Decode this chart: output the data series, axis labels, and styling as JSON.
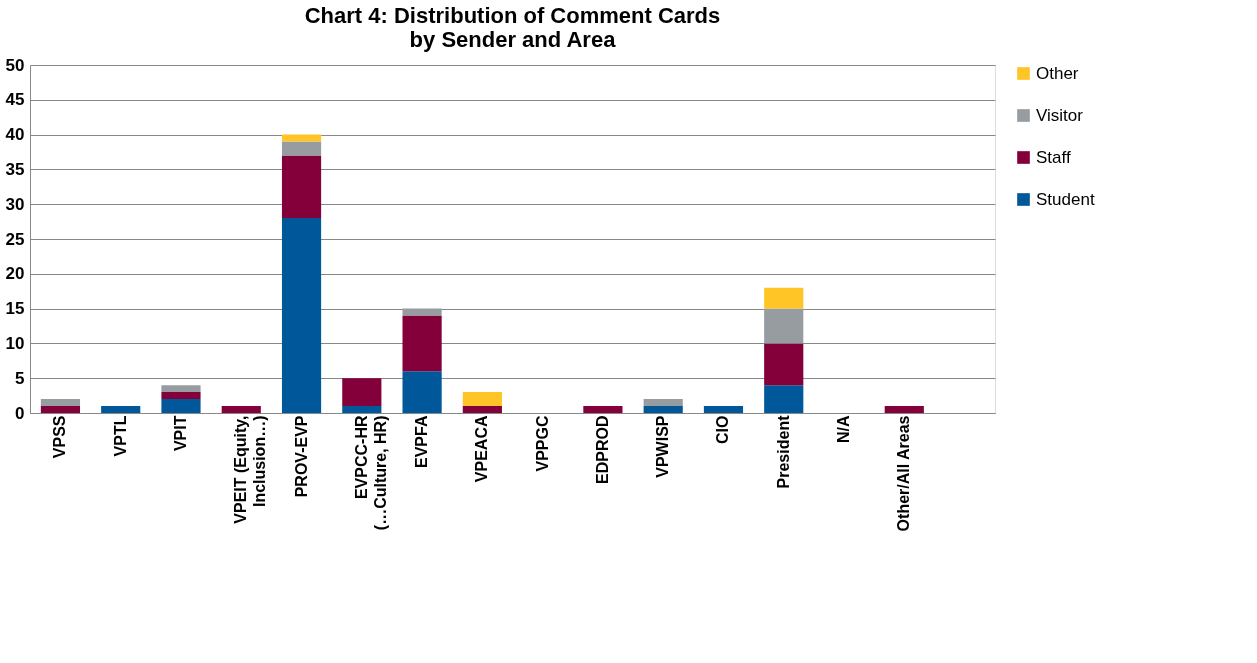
{
  "chart_data": {
    "type": "bar",
    "title": "Chart 4: Distribution of Comment Cards\nby Sender and Area",
    "stacked": true,
    "categories": [
      "VPSS",
      "VPTL",
      "VPIT",
      "VPEIT (Equity,\nInclusion…)",
      "PROV-EVP",
      "EVPCC-HR\n(…Culture, HR)",
      "EVPFA",
      "VPEACA",
      "VPPGC",
      "EDPROD",
      "VPWISP",
      "CIO",
      "President",
      "N/A",
      "Other/All Areas",
      null
    ],
    "series": [
      {
        "name": "Student",
        "color": "#00589a",
        "values": [
          0,
          1,
          2,
          0,
          28,
          1,
          6,
          0,
          0,
          0,
          1,
          1,
          4,
          0,
          0,
          null
        ]
      },
      {
        "name": "Staff",
        "color": "#84003a",
        "values": [
          1,
          0,
          1,
          1,
          9,
          4,
          8,
          1,
          0,
          1,
          0,
          0,
          6,
          0,
          1,
          null
        ]
      },
      {
        "name": "Visitor",
        "color": "#979ca1",
        "values": [
          1,
          0,
          1,
          0,
          2,
          0,
          1,
          0,
          0,
          0,
          1,
          0,
          5,
          0,
          0,
          null
        ]
      },
      {
        "name": "Other",
        "color": "#ffc425",
        "values": [
          0,
          0,
          0,
          0,
          1,
          0,
          0,
          2,
          0,
          0,
          0,
          0,
          3,
          0,
          0,
          null
        ]
      }
    ],
    "ylim": [
      0,
      50
    ],
    "yticks": [
      0,
      5,
      10,
      15,
      20,
      25,
      30,
      35,
      40,
      45,
      50
    ],
    "grid": "y",
    "legend": "right"
  }
}
